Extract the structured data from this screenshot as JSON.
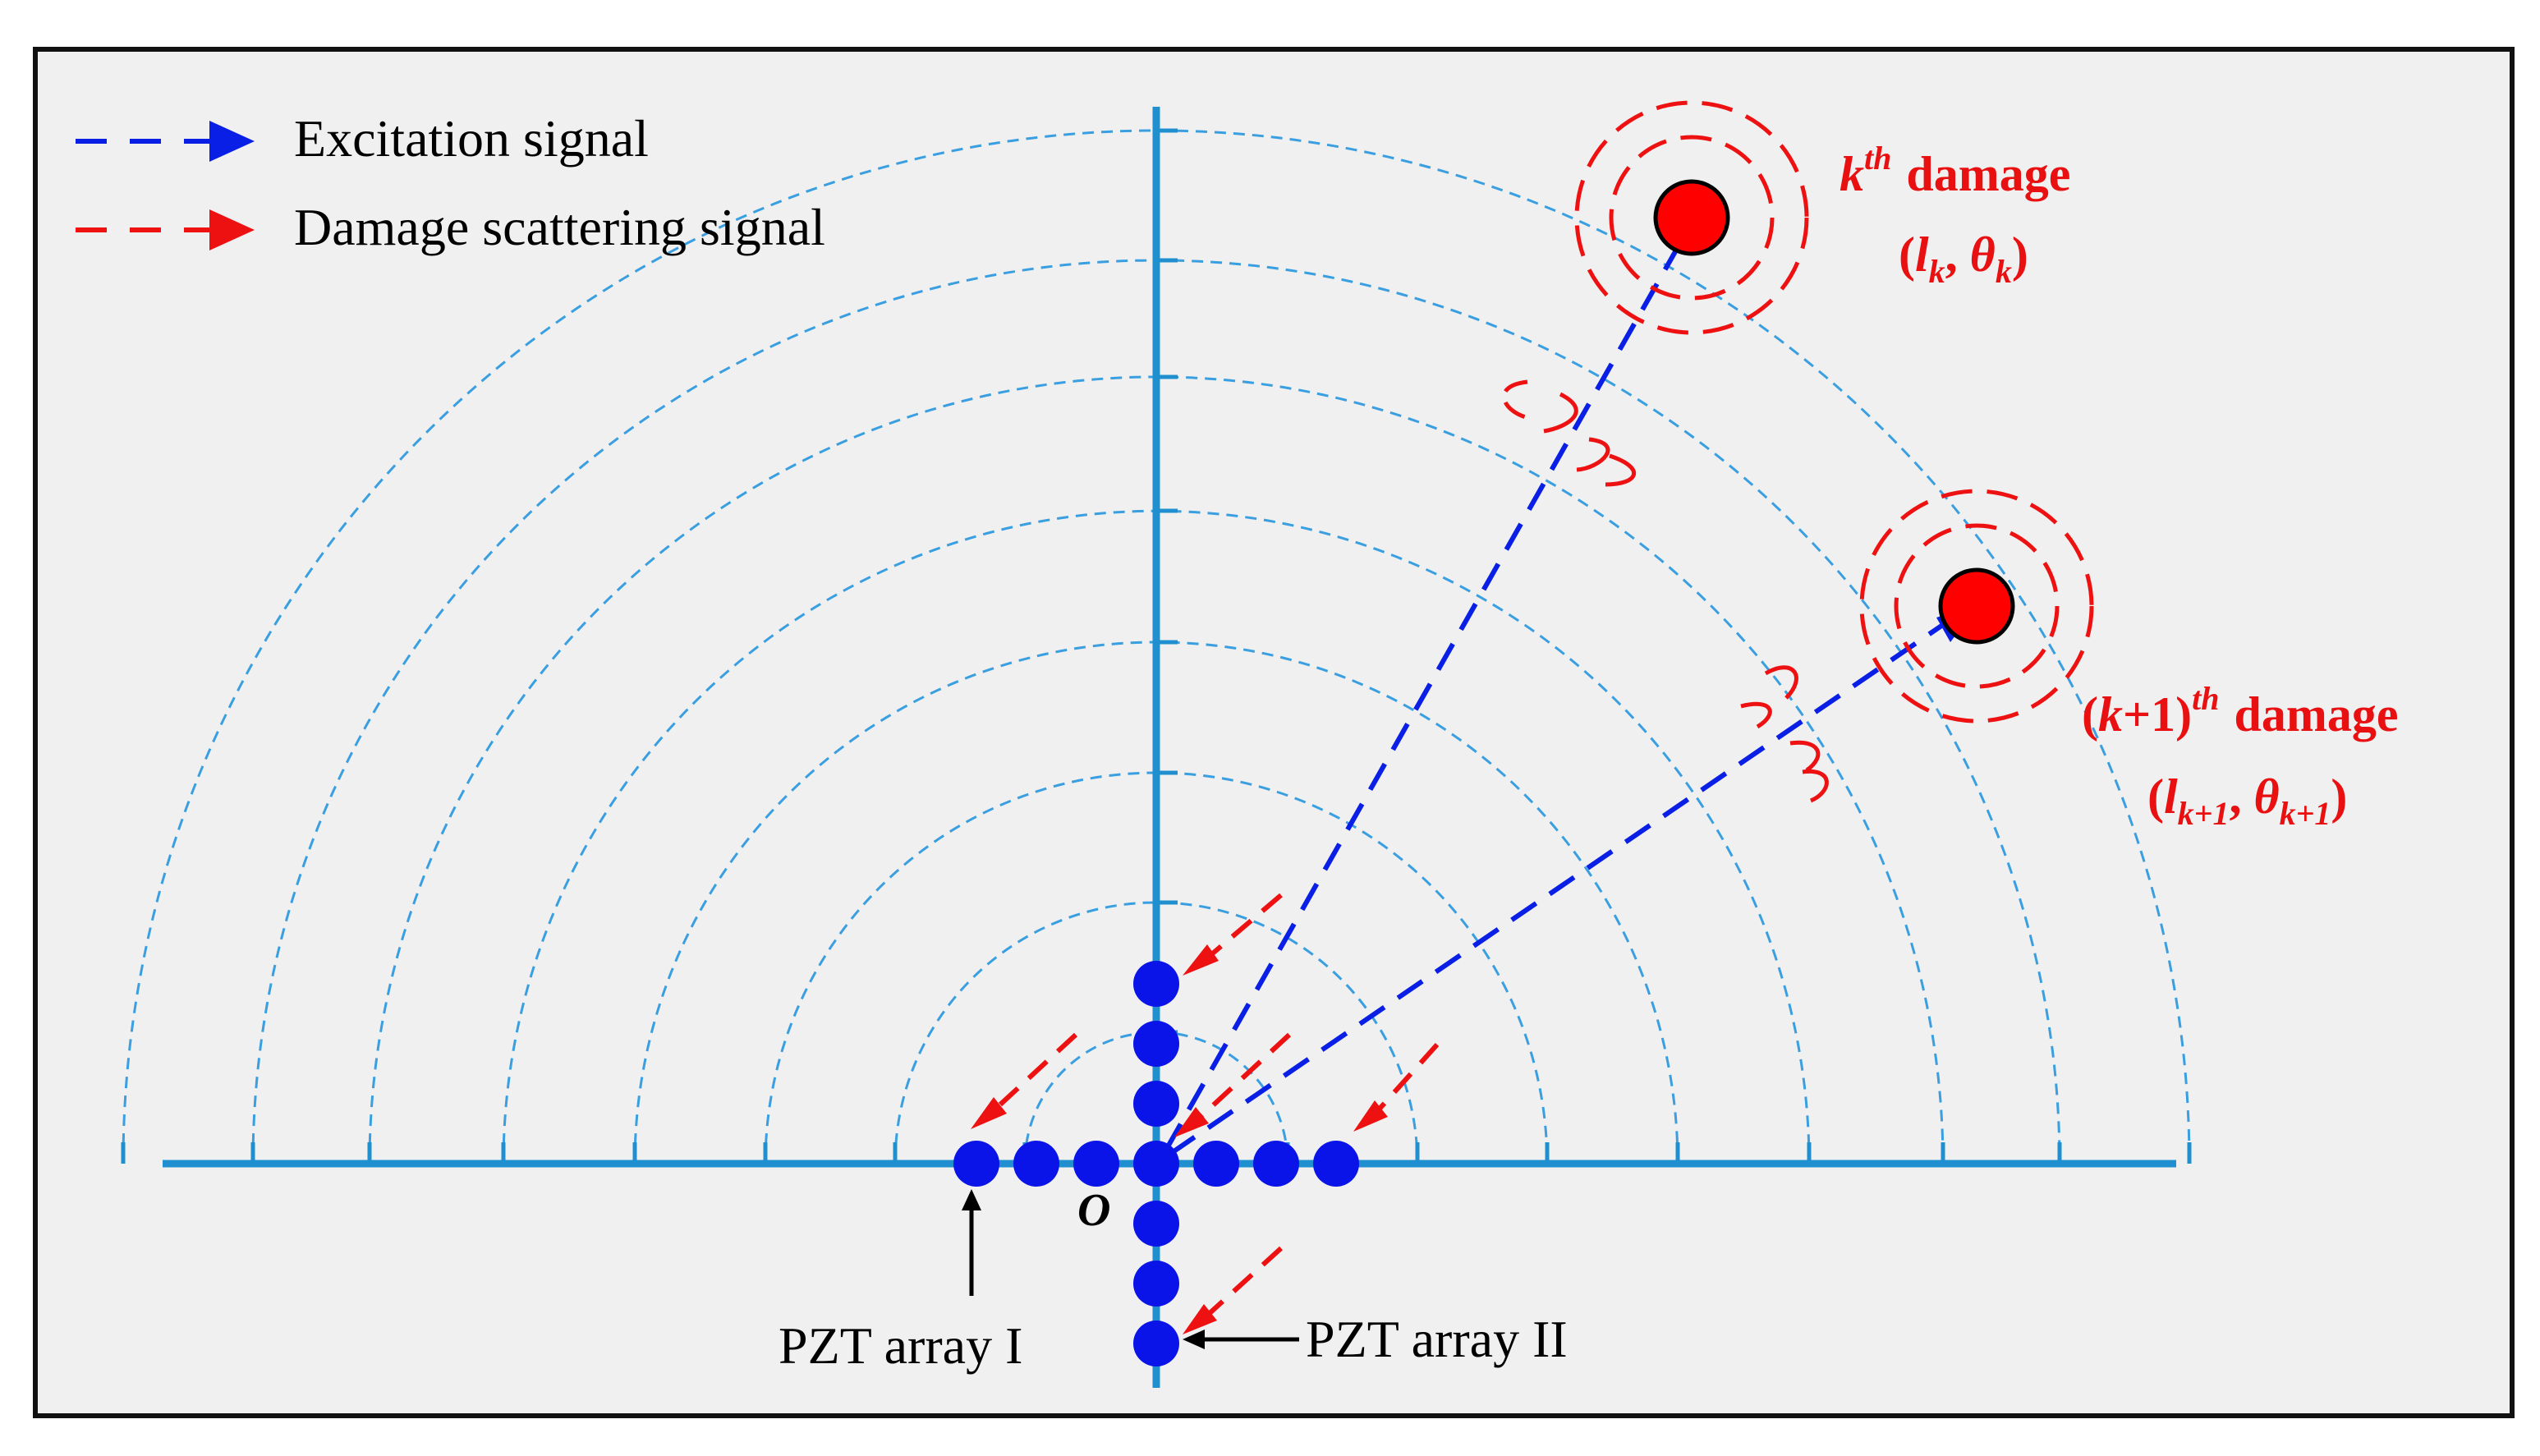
{
  "legend": {
    "excitation_label": "Excitation signal",
    "scattering_label": "Damage scattering signal"
  },
  "origin_label": "O",
  "arrays": {
    "array_1_label": "PZT array I",
    "array_2_label": "PZT array II"
  },
  "damage_k": {
    "index_letter": "k",
    "superscript": "th",
    "word": "damage",
    "coord_open": "(",
    "l_symbol": "l",
    "l_subscript": "k",
    "separator": ", ",
    "theta_symbol": "θ",
    "theta_subscript": "k",
    "coord_close": ")"
  },
  "damage_k1": {
    "open_paren": "(",
    "index_letter": "k",
    "plus_one": "+1)",
    "superscript": "th",
    "word": "damage",
    "coord_open": "(",
    "l_symbol": "l",
    "l_subscript": "k+1",
    "separator": ", ",
    "theta_symbol": "θ",
    "theta_subscript": "k+1",
    "coord_close": ")"
  },
  "colors": {
    "background": "#f0f0f0",
    "frame": "#111111",
    "axis": "#1f8fd0",
    "arc": "#3a9fe0",
    "excitation": "#0a1fe6",
    "scattering": "#ee1111",
    "sensor": "#0a14e8",
    "damage_fill": "#ff0000",
    "label_red": "#e81010"
  }
}
